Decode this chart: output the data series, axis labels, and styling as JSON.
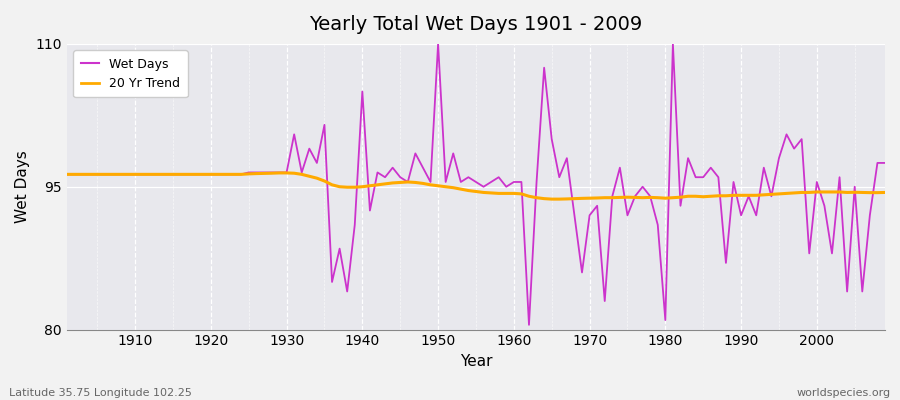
{
  "title": "Yearly Total Wet Days 1901 - 2009",
  "xlabel": "Year",
  "ylabel": "Wet Days",
  "footnote_left": "Latitude 35.75 Longitude 102.25",
  "footnote_right": "worldspecies.org",
  "legend_wet": "Wet Days",
  "legend_trend": "20 Yr Trend",
  "wet_color": "#cc33cc",
  "trend_color": "#ffaa00",
  "bg_color": "#f2f2f2",
  "plot_bg_color": "#e8e8ed",
  "ylim": [
    80,
    110
  ],
  "yticks": [
    80,
    95,
    110
  ],
  "xticks": [
    1910,
    1920,
    1930,
    1940,
    1950,
    1960,
    1970,
    1980,
    1990,
    2000
  ],
  "years": [
    1901,
    1902,
    1903,
    1904,
    1905,
    1906,
    1907,
    1908,
    1909,
    1910,
    1911,
    1912,
    1913,
    1914,
    1915,
    1916,
    1917,
    1918,
    1919,
    1920,
    1921,
    1922,
    1923,
    1924,
    1925,
    1926,
    1927,
    1928,
    1929,
    1930,
    1931,
    1932,
    1933,
    1934,
    1935,
    1936,
    1937,
    1938,
    1939,
    1940,
    1941,
    1942,
    1943,
    1944,
    1945,
    1946,
    1947,
    1948,
    1949,
    1950,
    1951,
    1952,
    1953,
    1954,
    1955,
    1956,
    1957,
    1958,
    1959,
    1960,
    1961,
    1962,
    1963,
    1964,
    1965,
    1966,
    1967,
    1968,
    1969,
    1970,
    1971,
    1972,
    1973,
    1974,
    1975,
    1976,
    1977,
    1978,
    1979,
    1980,
    1981,
    1982,
    1983,
    1984,
    1985,
    1986,
    1987,
    1988,
    1989,
    1990,
    1991,
    1992,
    1993,
    1994,
    1995,
    1996,
    1997,
    1998,
    1999,
    2000,
    2001,
    2002,
    2003,
    2004,
    2005,
    2006,
    2007,
    2008,
    2009
  ],
  "wet_days": [
    96.3,
    96.3,
    96.3,
    96.3,
    96.3,
    96.3,
    96.3,
    96.3,
    96.3,
    96.3,
    96.3,
    96.3,
    96.3,
    96.3,
    96.3,
    96.3,
    96.3,
    96.3,
    96.3,
    96.3,
    96.3,
    96.3,
    96.3,
    96.3,
    96.5,
    96.5,
    96.5,
    96.5,
    96.5,
    96.5,
    100.5,
    96.5,
    99.0,
    97.5,
    101.5,
    85.0,
    88.5,
    84.0,
    91.0,
    105.0,
    92.5,
    96.5,
    96.0,
    97.0,
    96.0,
    95.5,
    98.5,
    97.0,
    95.5,
    110.0,
    95.5,
    98.5,
    95.5,
    96.0,
    95.5,
    95.0,
    95.5,
    96.0,
    95.0,
    95.5,
    95.5,
    80.5,
    95.5,
    107.5,
    100.0,
    96.0,
    98.0,
    92.0,
    86.0,
    92.0,
    93.0,
    83.0,
    94.0,
    97.0,
    92.0,
    94.0,
    95.0,
    94.0,
    91.0,
    81.0,
    110.0,
    93.0,
    98.0,
    96.0,
    96.0,
    97.0,
    96.0,
    87.0,
    95.5,
    92.0,
    94.0,
    92.0,
    97.0,
    94.0,
    98.0,
    100.5,
    99.0,
    100.0,
    88.0,
    95.5,
    93.0,
    88.0,
    96.0,
    84.0,
    95.0,
    84.0,
    92.0,
    97.5,
    97.5
  ],
  "trend_vals_full": [
    96.3,
    96.3,
    96.3,
    96.3,
    96.3,
    96.3,
    96.3,
    96.3,
    96.3,
    96.3,
    96.3,
    96.3,
    96.3,
    96.3,
    96.3,
    96.3,
    96.3,
    96.3,
    96.3,
    96.3,
    96.3,
    96.3,
    96.3,
    96.3,
    96.35,
    96.38,
    96.4,
    96.42,
    96.45,
    96.45,
    96.42,
    96.3,
    96.1,
    95.9,
    95.6,
    95.2,
    95.0,
    94.95,
    94.95,
    95.0,
    95.1,
    95.2,
    95.3,
    95.4,
    95.45,
    95.5,
    95.45,
    95.35,
    95.2,
    95.1,
    95.0,
    94.9,
    94.75,
    94.6,
    94.5,
    94.4,
    94.35,
    94.3,
    94.3,
    94.3,
    94.25,
    94.0,
    93.85,
    93.75,
    93.7,
    93.7,
    93.72,
    93.75,
    93.78,
    93.8,
    93.82,
    93.85,
    93.85,
    93.88,
    93.9,
    93.88,
    93.85,
    93.88,
    93.85,
    93.8,
    93.85,
    93.9,
    94.0,
    94.0,
    93.95,
    94.0,
    94.05,
    94.05,
    94.1,
    94.1,
    94.1,
    94.1,
    94.15,
    94.2,
    94.25,
    94.3,
    94.35,
    94.4,
    94.4,
    94.45,
    94.45,
    94.45,
    94.45,
    94.4,
    94.42,
    94.4,
    94.38,
    94.38,
    94.4
  ]
}
